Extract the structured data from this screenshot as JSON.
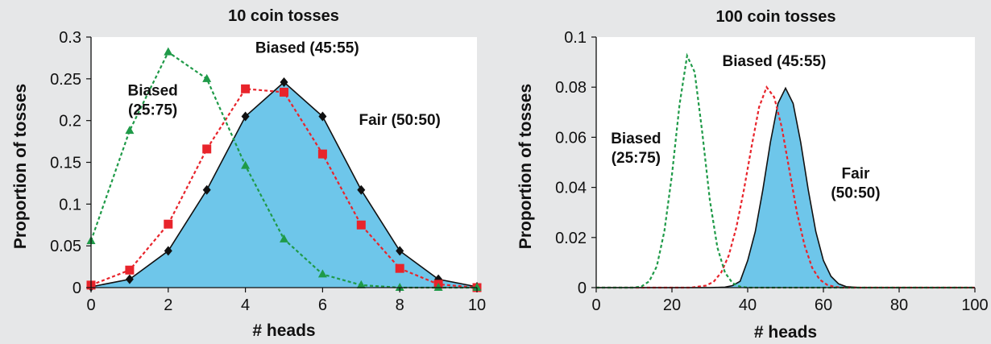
{
  "chart_data": [
    {
      "type": "line",
      "title": "10 coin tosses",
      "xlabel": "# heads",
      "ylabel": "Proportion of tosses",
      "xlim": [
        0,
        10
      ],
      "ylim": [
        0,
        0.3
      ],
      "xticks": [
        0,
        2,
        4,
        6,
        8,
        10
      ],
      "xtick_labels": [
        "0",
        "2",
        "4",
        "6",
        "8",
        "10"
      ],
      "yticks": [
        0,
        0.05,
        0.1,
        0.15,
        0.2,
        0.25,
        0.3
      ],
      "ytick_labels": [
        "0",
        "0.05",
        "0.1",
        "0.15",
        "0.2",
        "0.25",
        "0.3"
      ],
      "grid": false,
      "series": [
        {
          "name": "Fair (50:50)",
          "style": "area-solid",
          "marker": "diamond",
          "color": "#111111",
          "fill": "#6ec6ea",
          "x": [
            0,
            1,
            2,
            3,
            4,
            5,
            6,
            7,
            8,
            9,
            10
          ],
          "y": [
            0.001,
            0.01,
            0.044,
            0.117,
            0.205,
            0.246,
            0.205,
            0.117,
            0.044,
            0.01,
            0.001
          ]
        },
        {
          "name": "Biased (45:55)",
          "style": "dashed",
          "marker": "square",
          "color": "#e8242b",
          "x": [
            0,
            1,
            2,
            3,
            4,
            5,
            6,
            7,
            8,
            9,
            10
          ],
          "y": [
            0.003,
            0.021,
            0.076,
            0.166,
            0.238,
            0.234,
            0.16,
            0.075,
            0.023,
            0.004,
            0.0
          ]
        },
        {
          "name": "Biased (25:75)",
          "style": "dashed",
          "marker": "triangle",
          "color": "#1f9a48",
          "x": [
            0,
            1,
            2,
            3,
            4,
            5,
            6,
            7,
            8,
            9,
            10
          ],
          "y": [
            0.056,
            0.188,
            0.282,
            0.25,
            0.146,
            0.058,
            0.016,
            0.003,
            0.0,
            0.0,
            0.0
          ]
        }
      ],
      "annotations": [
        {
          "text": "Biased (45:55)",
          "lines": [
            "Biased (45:55)"
          ],
          "x": 5.6,
          "y": 0.281
        },
        {
          "text": "Biased (25:75)",
          "lines": [
            "Biased",
            "(25:75)"
          ],
          "x": 1.6,
          "y": 0.23
        },
        {
          "text": "Fair (50:50)",
          "lines": [
            "Fair (50:50)"
          ],
          "x": 8.0,
          "y": 0.195
        }
      ]
    },
    {
      "type": "area",
      "title": "100 coin tosses",
      "xlabel": "# heads",
      "ylabel": "Proportion of tosses",
      "xlim": [
        0,
        100
      ],
      "ylim": [
        0,
        0.1
      ],
      "xticks": [
        0,
        20,
        40,
        60,
        80,
        100
      ],
      "xtick_labels": [
        "0",
        "20",
        "40",
        "60",
        "80",
        "100"
      ],
      "yticks": [
        0,
        0.02,
        0.04,
        0.06,
        0.08,
        0.1
      ],
      "ytick_labels": [
        "0",
        "0.02",
        "0.04",
        "0.06",
        "0.08",
        "0.1"
      ],
      "grid": false,
      "series": [
        {
          "name": "Fair (50:50)",
          "style": "area-solid",
          "color": "#111111",
          "fill": "#6ec6ea",
          "x": [
            0,
            30,
            34,
            36,
            38,
            40,
            42,
            44,
            46,
            48,
            50,
            52,
            54,
            56,
            58,
            60,
            62,
            64,
            66,
            70,
            100
          ],
          "y": [
            0,
            0,
            0.0002,
            0.0008,
            0.0025,
            0.0108,
            0.0223,
            0.039,
            0.058,
            0.0735,
            0.0796,
            0.0735,
            0.058,
            0.039,
            0.0223,
            0.0108,
            0.0045,
            0.0015,
            0.0004,
            0,
            0
          ]
        },
        {
          "name": "Biased (45:55)",
          "style": "dashed",
          "color": "#e8242b",
          "x": [
            0,
            25,
            29,
            31,
            33,
            35,
            37,
            39,
            41,
            43,
            45,
            47,
            49,
            51,
            53,
            55,
            57,
            59,
            61,
            63,
            65,
            100
          ],
          "y": [
            0,
            0,
            0.0008,
            0.0023,
            0.006,
            0.0128,
            0.024,
            0.039,
            0.056,
            0.072,
            0.08,
            0.076,
            0.064,
            0.047,
            0.03,
            0.017,
            0.008,
            0.0032,
            0.0011,
            0.0003,
            0,
            0
          ]
        },
        {
          "name": "Biased (25:75)",
          "style": "dashed",
          "color": "#1f9a48",
          "x": [
            0,
            10,
            12,
            14,
            16,
            18,
            20,
            22,
            24,
            26,
            28,
            30,
            32,
            34,
            36,
            38,
            40,
            100
          ],
          "y": [
            0,
            0,
            0.0005,
            0.0025,
            0.0085,
            0.0225,
            0.045,
            0.073,
            0.0925,
            0.086,
            0.062,
            0.035,
            0.016,
            0.006,
            0.0018,
            0.0004,
            0,
            0
          ]
        }
      ],
      "annotations": [
        {
          "text": "Biased (45:55)",
          "lines": [
            "Biased (45:55)"
          ],
          "x": 47,
          "y": 0.0885
        },
        {
          "text": "Biased (25:75)",
          "lines": [
            "Biased",
            "(25:75)"
          ],
          "x": 10.5,
          "y": 0.0575
        },
        {
          "text": "Fair (50:50)",
          "lines": [
            "Fair",
            "(50:50)"
          ],
          "x": 68.5,
          "y": 0.0435
        }
      ]
    }
  ]
}
